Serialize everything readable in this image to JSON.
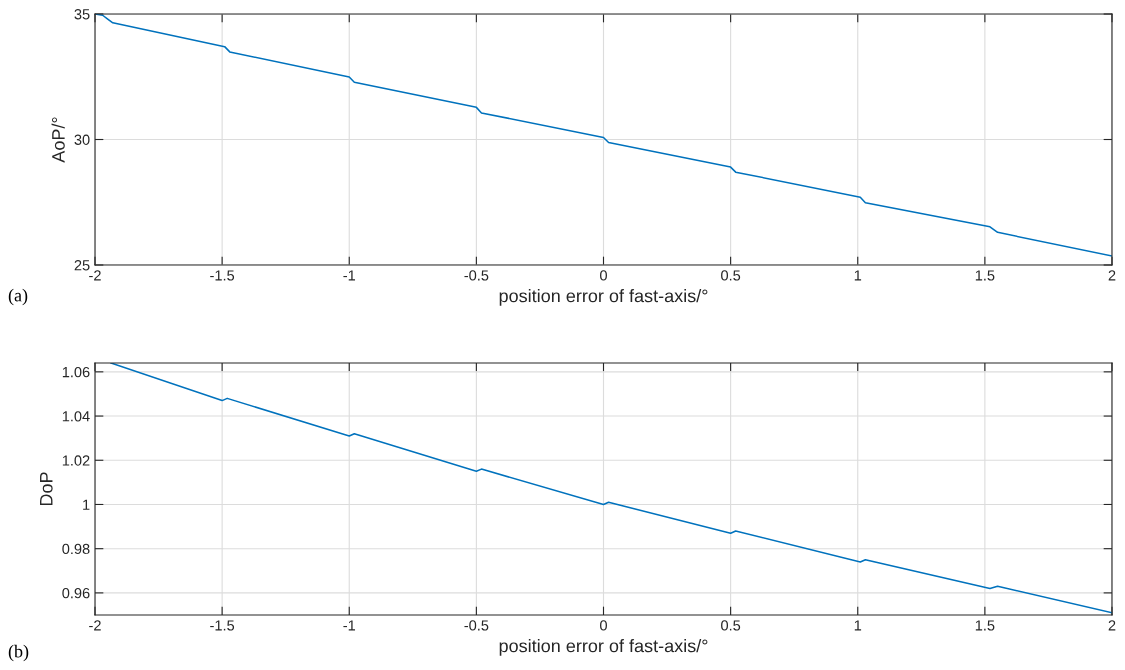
{
  "chart_data": [
    {
      "type": "line",
      "xlabel": "position error of fast-axis/°",
      "ylabel": "AoP/°",
      "annotations": [
        "(a)"
      ],
      "series": [
        {
          "color": "#0072bd",
          "x": [
            -2,
            -1.97,
            -1.95,
            -1.93,
            -1.49,
            -1.47,
            -1.0,
            -0.98,
            -0.5,
            -0.48,
            0.0,
            0.02,
            0.5,
            0.52,
            1.01,
            1.03,
            1.52,
            1.55,
            2.0
          ],
          "values": [
            35.0,
            34.95,
            34.8,
            34.65,
            33.7,
            33.49,
            32.49,
            32.28,
            31.28,
            31.06,
            30.08,
            29.88,
            28.9,
            28.7,
            27.7,
            27.48,
            26.52,
            26.3,
            25.36
          ]
        }
      ],
      "xlim": [
        -2,
        2
      ],
      "xticks": [
        -2,
        -1.5,
        -1,
        -0.5,
        0,
        0.5,
        1,
        1.5,
        2
      ],
      "ylim": [
        25,
        35
      ],
      "yticks": [
        25,
        30,
        35
      ],
      "grid": true,
      "line_style": "solid",
      "marker": "none"
    },
    {
      "type": "line",
      "xlabel": "position error of fast-axis/°",
      "ylabel": "DoP",
      "annotations": [
        "(b)"
      ],
      "series": [
        {
          "color": "#0072bd",
          "x": [
            -1.937,
            -1.5,
            -1.48,
            -1.0,
            -0.98,
            -0.5,
            -0.48,
            0.0,
            0.02,
            0.5,
            0.52,
            1.01,
            1.03,
            1.52,
            1.55,
            2.0
          ],
          "values": [
            1.064,
            1.047,
            1.048,
            1.031,
            1.032,
            1.015,
            1.016,
            1.0,
            1.001,
            0.987,
            0.988,
            0.974,
            0.975,
            0.962,
            0.963,
            0.951
          ]
        }
      ],
      "xlim": [
        -2,
        2
      ],
      "xticks": [
        -2,
        -1.5,
        -1,
        -0.5,
        0,
        0.5,
        1,
        1.5,
        2
      ],
      "ylim": [
        0.95,
        1.064
      ],
      "yticks": [
        0.96,
        0.98,
        1,
        1.02,
        1.04,
        1.06
      ],
      "grid": true,
      "line_style": "solid",
      "marker": "none"
    }
  ]
}
